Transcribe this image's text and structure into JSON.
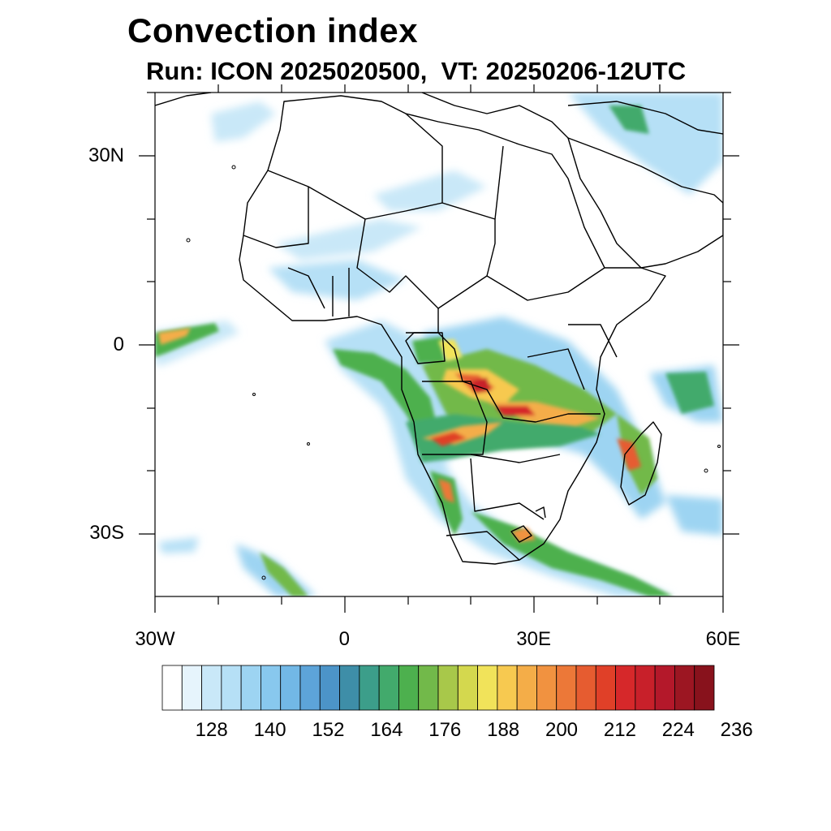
{
  "title": "Convection index",
  "subtitle": "Run: ICON 2025020500,  VT: 20250206-12UTC",
  "map": {
    "lon_range": [
      -30,
      60
    ],
    "lat_range": [
      -40,
      40
    ],
    "lat_labels": [
      {
        "lat": 30,
        "label": "30N"
      },
      {
        "lat": 0,
        "label": "0"
      },
      {
        "lat": -30,
        "label": "30S"
      }
    ],
    "lon_labels": [
      {
        "lon": -30,
        "label": "30W"
      },
      {
        "lon": 0,
        "label": "0"
      },
      {
        "lon": 30,
        "label": "30E"
      },
      {
        "lon": 60,
        "label": "60E"
      }
    ]
  },
  "colorbar": {
    "colors": [
      "#ffffff",
      "#e6f4fc",
      "#c9e8f8",
      "#b6e0f6",
      "#9dd4f2",
      "#88c8ee",
      "#72b8e6",
      "#5da4d9",
      "#4c94c8",
      "#3e8ea8",
      "#3c9e8a",
      "#42aa6c",
      "#4db04e",
      "#72b94a",
      "#a8c84a",
      "#d4d84e",
      "#f1e35a",
      "#f7c950",
      "#f4ad48",
      "#f19240",
      "#ec7838",
      "#e65c30",
      "#e04028",
      "#d6282a",
      "#c8202a",
      "#b4182a",
      "#9c1622",
      "#88121c"
    ],
    "tick_labels": [
      "128",
      "140",
      "152",
      "164",
      "176",
      "188",
      "200",
      "212",
      "224",
      "236"
    ]
  }
}
